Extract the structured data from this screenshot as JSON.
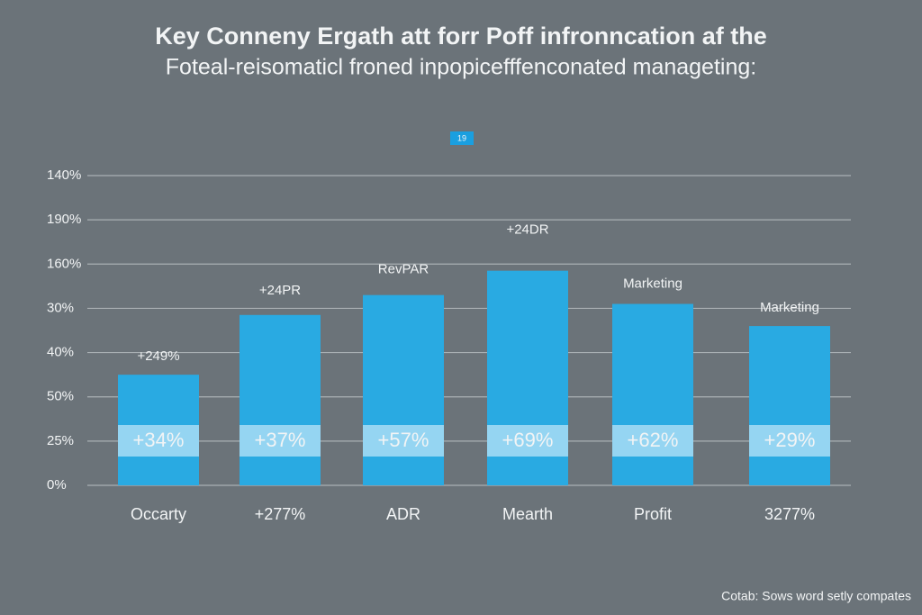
{
  "chart_data": {
    "type": "bar",
    "title": "Key Conneny Ergath att forr Poff infronncation af the",
    "subtitle": "Foteal-reisomaticl froned inpopicefffenconated manageting:",
    "badge": "19",
    "categories": [
      "Occarty",
      "+277%",
      "ADR",
      "Mearth",
      "Profit",
      "3277%"
    ],
    "values": [
      2.5,
      3.85,
      4.3,
      4.85,
      4.1,
      3.6
    ],
    "band_labels": [
      "+34%",
      "+37%",
      "+57%",
      "+69%",
      "+62%",
      "+29%"
    ],
    "bar_annotations": [
      "+249%",
      "+24PR",
      "RevPAR",
      "+24DR",
      "Marketing",
      "Marketing"
    ],
    "color": "#29aae2",
    "band_color": "#a8ddf4",
    "ylim": [
      0,
      7
    ],
    "yticks": [
      {
        "value": 0,
        "label": "0%"
      },
      {
        "value": 1,
        "label": "25%"
      },
      {
        "value": 2,
        "label": "50%"
      },
      {
        "value": 3,
        "label": "40%"
      },
      {
        "value": 4,
        "label": "30%"
      },
      {
        "value": 5,
        "label": "160%"
      },
      {
        "value": 6,
        "label": "190%"
      },
      {
        "value": 7,
        "label": "140%"
      }
    ],
    "grid": true,
    "footnote": "Cotab: Sows word setly compates"
  }
}
